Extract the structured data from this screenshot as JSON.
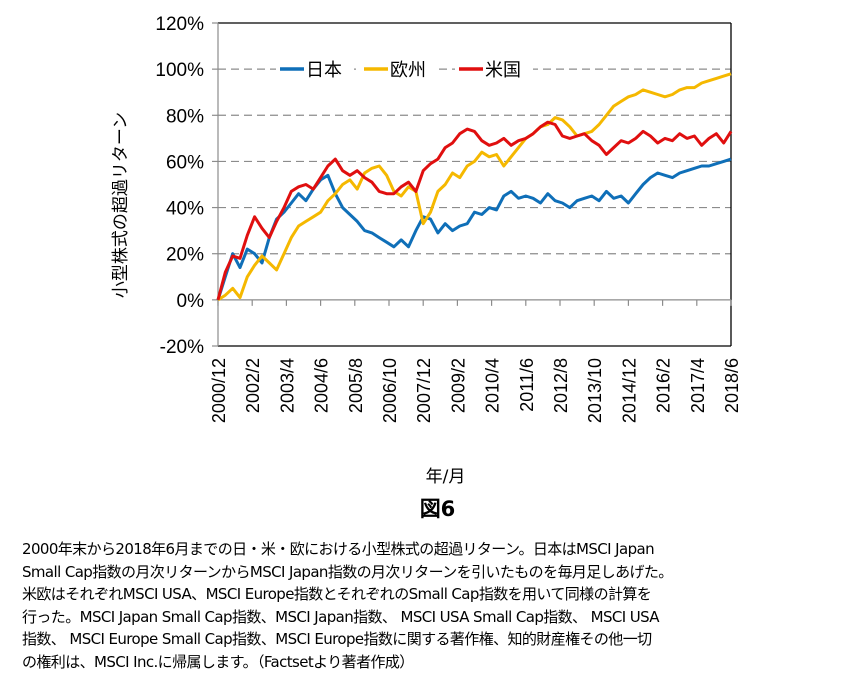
{
  "chart_data": {
    "type": "line",
    "title": "図6",
    "xlabel": "年/月",
    "ylabel": "小型株式の超過リターン",
    "ylim": [
      -0.2,
      1.2
    ],
    "yticks": [
      -0.2,
      0,
      0.2,
      0.4,
      0.6,
      0.8,
      1.0,
      1.2
    ],
    "ytick_labels": [
      "-20%",
      "0%",
      "20%",
      "40%",
      "60%",
      "80%",
      "100%",
      "120%"
    ],
    "grid": "horizontal-dashed",
    "legend_position": "top-center",
    "x_start": "2000/12",
    "x_end": "2018/6",
    "x_step_months": 3,
    "xtick_labels": [
      "2000/12",
      "2002/2",
      "2003/4",
      "2004/6",
      "2005/8",
      "2006/10",
      "2007/12",
      "2009/2",
      "2010/4",
      "2011/6",
      "2012/8",
      "2013/10",
      "2014/12",
      "2016/2",
      "2017/4",
      "2018/6"
    ],
    "series": [
      {
        "name": "日本",
        "color": "#0F6FB8",
        "values": [
          0.0,
          0.1,
          0.2,
          0.14,
          0.22,
          0.2,
          0.16,
          0.27,
          0.35,
          0.38,
          0.42,
          0.46,
          0.43,
          0.48,
          0.52,
          0.54,
          0.46,
          0.4,
          0.37,
          0.34,
          0.3,
          0.29,
          0.27,
          0.25,
          0.23,
          0.26,
          0.23,
          0.3,
          0.36,
          0.35,
          0.29,
          0.33,
          0.3,
          0.32,
          0.33,
          0.38,
          0.37,
          0.4,
          0.39,
          0.45,
          0.47,
          0.44,
          0.45,
          0.44,
          0.42,
          0.46,
          0.43,
          0.42,
          0.4,
          0.43,
          0.44,
          0.45,
          0.43,
          0.47,
          0.44,
          0.45,
          0.42,
          0.46,
          0.5,
          0.53,
          0.55,
          0.54,
          0.53,
          0.55,
          0.56,
          0.57,
          0.58,
          0.58,
          0.59,
          0.6,
          0.61
        ]
      },
      {
        "name": "欧州",
        "color": "#F5B800",
        "values": [
          0.0,
          0.02,
          0.05,
          0.01,
          0.1,
          0.15,
          0.19,
          0.16,
          0.13,
          0.2,
          0.27,
          0.32,
          0.34,
          0.36,
          0.38,
          0.43,
          0.46,
          0.5,
          0.52,
          0.48,
          0.55,
          0.57,
          0.58,
          0.54,
          0.47,
          0.45,
          0.49,
          0.47,
          0.33,
          0.38,
          0.47,
          0.5,
          0.55,
          0.53,
          0.58,
          0.6,
          0.64,
          0.62,
          0.63,
          0.58,
          0.62,
          0.66,
          0.7,
          0.72,
          0.75,
          0.76,
          0.79,
          0.78,
          0.75,
          0.71,
          0.72,
          0.73,
          0.76,
          0.8,
          0.84,
          0.86,
          0.88,
          0.89,
          0.91,
          0.9,
          0.89,
          0.88,
          0.89,
          0.91,
          0.92,
          0.92,
          0.94,
          0.95,
          0.96,
          0.97,
          0.98
        ]
      },
      {
        "name": "米国",
        "color": "#E00F0F",
        "values": [
          0.0,
          0.12,
          0.19,
          0.18,
          0.28,
          0.36,
          0.31,
          0.27,
          0.34,
          0.4,
          0.47,
          0.49,
          0.5,
          0.48,
          0.53,
          0.58,
          0.61,
          0.56,
          0.54,
          0.56,
          0.53,
          0.51,
          0.47,
          0.46,
          0.46,
          0.49,
          0.51,
          0.47,
          0.56,
          0.59,
          0.61,
          0.66,
          0.68,
          0.72,
          0.74,
          0.73,
          0.69,
          0.67,
          0.68,
          0.7,
          0.67,
          0.69,
          0.7,
          0.72,
          0.75,
          0.77,
          0.76,
          0.71,
          0.7,
          0.71,
          0.72,
          0.69,
          0.67,
          0.63,
          0.66,
          0.69,
          0.68,
          0.7,
          0.73,
          0.71,
          0.68,
          0.7,
          0.69,
          0.72,
          0.7,
          0.71,
          0.67,
          0.7,
          0.72,
          0.68,
          0.73
        ]
      }
    ]
  },
  "footnote": {
    "lines": [
      "2000年末から2018年6月までの日・米・欧における小型株式の超過リターン。日本はMSCI  Japan",
      "Small Cap指数の月次リターンからMSCI  Japan指数の月次リターンを引いたものを毎月足しあげた。",
      "米欧はそれぞれMSCI USA、MSCI Europe指数とそれぞれのSmall  Cap指数を用いて同様の計算を",
      "行った。MSCI Japan Small Cap指数、MSCI Japan指数、 MSCI USA Small Cap指数、 MSCI USA",
      "指数、 MSCI Europe Small Cap指数、MSCI Europe指数に関する著作権、知的財産権その他一切",
      "の権利は、MSCI Inc.に帰属します。（Factsetより著者作成）"
    ]
  }
}
